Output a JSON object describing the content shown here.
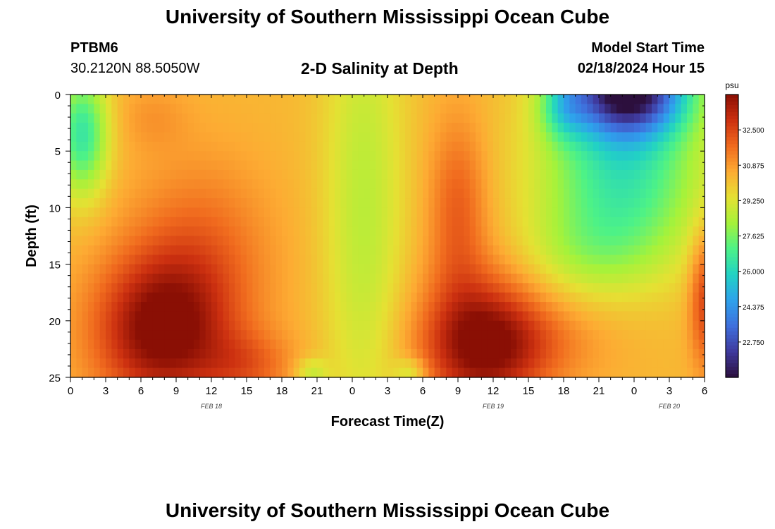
{
  "header": {
    "title": "University of Southern Mississippi Ocean Cube",
    "station": "PTBM6",
    "coords": "30.2120N  88.5050W",
    "subtitle": "2-D Salinity at Depth",
    "model_start_label": "Model Start Time",
    "model_start_value": "02/18/2024 Hour 15"
  },
  "footer": {
    "title": "University of Southern Mississippi Ocean Cube"
  },
  "chart_data": {
    "type": "heatmap",
    "title": "2-D Salinity at Depth",
    "xlabel": "Forecast Time(Z)",
    "ylabel": "Depth (ft)",
    "x_range_hours": [
      0,
      54
    ],
    "x_ticks": [
      "0",
      "3",
      "6",
      "9",
      "12",
      "15",
      "18",
      "21",
      "0",
      "3",
      "6",
      "9",
      "12",
      "15",
      "18",
      "21",
      "0",
      "3",
      "6"
    ],
    "x_tick_step_hours": 3,
    "date_labels": [
      {
        "text": "FEB 18",
        "hour": 12
      },
      {
        "text": "FEB 19",
        "hour": 36
      },
      {
        "text": "FEB 20",
        "hour": 51
      }
    ],
    "y_ticks": [
      0,
      5,
      10,
      15,
      20,
      25
    ],
    "ylim": [
      0,
      25
    ],
    "y_inverted": true,
    "colorbar": {
      "unit": "psu",
      "min": 21.125,
      "max": 34.125,
      "ticks": [
        "32.500",
        "30.875",
        "29.250",
        "27.625",
        "26.000",
        "24.375",
        "22.750"
      ],
      "tick_values": [
        32.5,
        30.875,
        29.25,
        27.625,
        26.0,
        24.375,
        22.75
      ],
      "colors": [
        "#2c0f3d",
        "#3f3a9e",
        "#3f6fdc",
        "#2ea2ec",
        "#22d2c4",
        "#4df287",
        "#a6f23a",
        "#e5e133",
        "#fdab33",
        "#f06a1e",
        "#cc3010",
        "#8a0f04"
      ]
    },
    "salinity_features": [
      {
        "label": "low surface (left)",
        "center_hour": 1.5,
        "center_depth": 3,
        "value": 26.5
      },
      {
        "label": "high bottom core Feb 18",
        "center_hour": 7,
        "center_depth": 21,
        "value": 34.0
      },
      {
        "label": "mid-column low",
        "center_hour": 25,
        "center_depth": 10,
        "value": 28.6
      },
      {
        "label": "high bottom core Feb 19",
        "center_hour": 35,
        "center_depth": 22,
        "value": 33.6
      },
      {
        "label": "fresh surface Feb 20",
        "center_hour": 48,
        "center_depth": 0.5,
        "value": 21.5
      }
    ]
  }
}
